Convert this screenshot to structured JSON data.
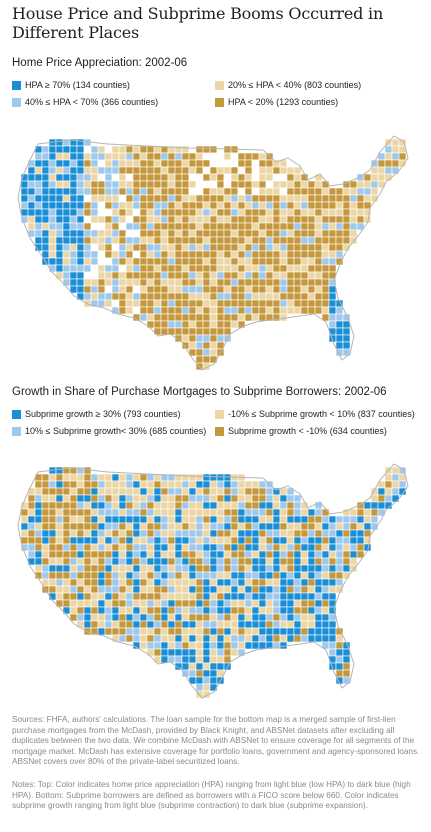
{
  "title": "House Price and Subprime Booms Occurred in Different Places",
  "colors": {
    "dark_blue": "#1a8fd6",
    "light_blue": "#9ec8ec",
    "light_tan": "#edd6a5",
    "dark_tan": "#c6983d",
    "no_data": "#ffffff",
    "border": "#b5b5b5"
  },
  "map_top": {
    "subtitle": "Home Price Appreciation: 2002-06",
    "legend": [
      {
        "label": "HPA ≥ 70% (134 counties)",
        "color": "#1a8fd6"
      },
      {
        "label": "20% ≤ HPA < 40% (803 counties)",
        "color": "#edd6a5"
      },
      {
        "label": "40% ≤ HPA < 70% (366 counties)",
        "color": "#9ec8ec"
      },
      {
        "label": "HPA < 20% (1293 counties)",
        "color": "#c6983d"
      }
    ]
  },
  "map_bottom": {
    "subtitle": "Growth in Share of Purchase Mortgages to Subprime Borrowers: 2002-06",
    "legend": [
      {
        "label": "Subprime growth ≥ 30% (793 counties)",
        "color": "#1a8fd6"
      },
      {
        "label": "-10% ≤ Subprime growth < 10% (837 counties)",
        "color": "#edd6a5"
      },
      {
        "label": "10% ≤ Subprime growth< 30% (685 counties)",
        "color": "#9ec8ec"
      },
      {
        "label": "Subprime growth < -10% (634 counties)",
        "color": "#c6983d"
      }
    ]
  },
  "sources": "Sources: FHFA, authors' calculations. The loan sample for the bottom map is a merged sample of first-lien purchase mortgages from the McDash, provided by Black Knight, and ABSNet datasets after excluding all duplicates between the two data. We combine McDash with ABSNet to ensure coverage for all segments of the mortgage market. McDash has extensive coverage for portfolio loans, government and agency-sponsored loans. ABSNet covers over 80% of the private-label securitized loans.",
  "notes": "Notes: Top: Color indicates home price appreciation (HPA) ranging from light blue (low HPA) to dark blue (high HPA). Bottom: Subprime borrowers are defined as borrowers with a FICO score below 660. Color indicates subprime growth ranging from light blue (subprime contraction) to dark blue (subprime expansion)."
}
